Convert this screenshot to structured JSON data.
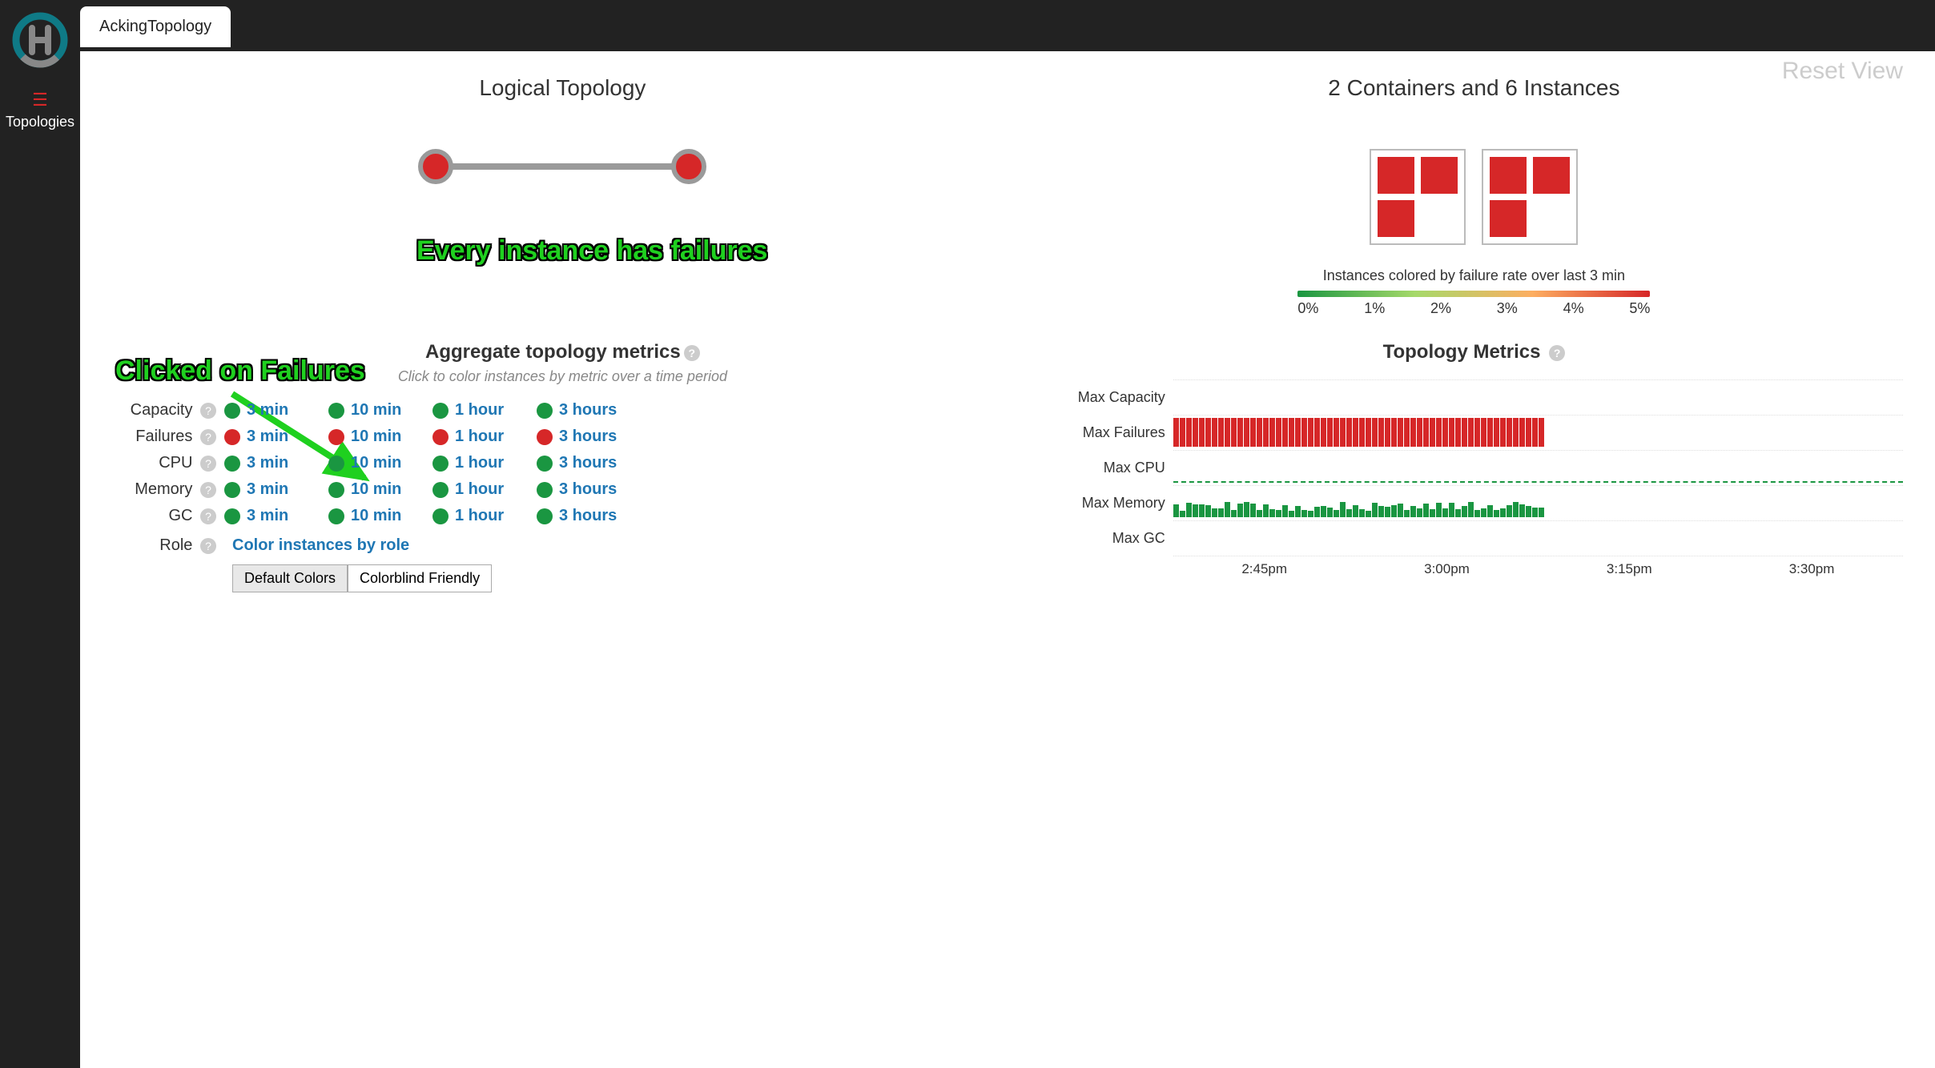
{
  "header": {
    "tab": "AckingTopology"
  },
  "sidebar": {
    "label": "Topologies"
  },
  "reset_view": "Reset View",
  "logical_topology": {
    "title": "Logical Topology",
    "node_fill": "#d62728",
    "node_border": "#9a9a9a",
    "edge_color": "#9a9a9a",
    "nodes": 2
  },
  "containers_panel": {
    "title": "2 Containers and 6 Instances",
    "container_border": "#bbbbbb",
    "instance_fill": "#d62728",
    "containers": [
      {
        "occupancy": [
          true,
          true,
          true,
          false
        ]
      },
      {
        "occupancy": [
          true,
          true,
          true,
          false
        ]
      }
    ],
    "legend_text": "Instances colored by failure rate over last 3 min",
    "gradient": [
      "#1a9641",
      "#a6d96a",
      "#fdae61",
      "#d62728"
    ],
    "ticks": [
      "0%",
      "1%",
      "2%",
      "3%",
      "4%",
      "5%"
    ]
  },
  "annotation1": "Every instance has failures",
  "annotation2": "Clicked on Failures",
  "aggregate_metrics": {
    "title": "Aggregate topology metrics",
    "subtitle": "Click to color instances by metric over a time period",
    "time_labels": [
      "3 min",
      "10 min",
      "1 hour",
      "3 hours"
    ],
    "link_color": "#1f77b4",
    "green": "#1a9641",
    "red": "#d62728",
    "rows": [
      {
        "label": "Capacity",
        "status": "green"
      },
      {
        "label": "Failures",
        "status": "red"
      },
      {
        "label": "CPU",
        "status": "green"
      },
      {
        "label": "Memory",
        "status": "green"
      },
      {
        "label": "GC",
        "status": "green"
      }
    ],
    "role_label": "Role",
    "role_link": "Color instances by role",
    "buttons": [
      "Default Colors",
      "Colorblind Friendly"
    ],
    "active_button": 0
  },
  "topology_metrics": {
    "title": "Topology Metrics",
    "row_labels": [
      "Max Capacity",
      "Max Failures",
      "Max CPU",
      "Max Memory",
      "Max GC"
    ],
    "xaxis": [
      "2:45pm",
      "3:00pm",
      "3:15pm",
      "3:30pm"
    ],
    "colors": {
      "red": "#d62728",
      "green": "#1a9641"
    },
    "rows": [
      {
        "style": "empty"
      },
      {
        "style": "bars",
        "color": "red",
        "height": 36,
        "count": 58
      },
      {
        "style": "dashed"
      },
      {
        "style": "bars",
        "color": "green",
        "height_min": 8,
        "height_max": 20,
        "count": 58
      },
      {
        "style": "empty"
      }
    ]
  }
}
